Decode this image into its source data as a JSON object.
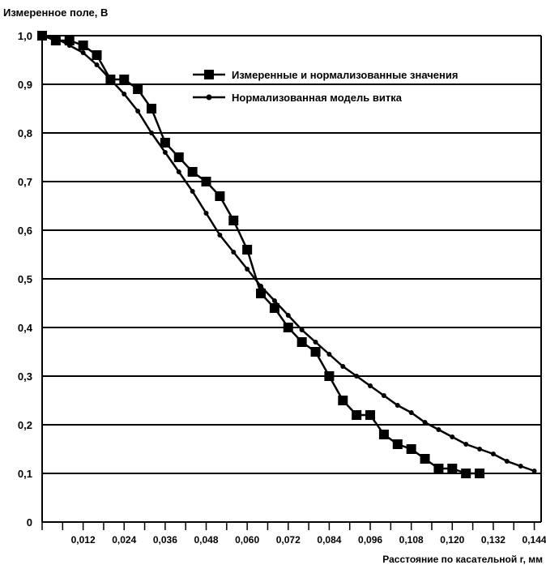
{
  "chart_data": {
    "type": "line",
    "ylabel": "Измеренное поле, В",
    "xlabel": "Расстояние по касательной r, мм",
    "y_ticks": [
      "0",
      "0,1",
      "0,2",
      "0,3",
      "0,4",
      "0,5",
      "0,6",
      "0,7",
      "0,8",
      "0,9",
      "1,0"
    ],
    "x_ticks": [
      "0,012",
      "0,024",
      "0,036",
      "0,048",
      "0,060",
      "0,072",
      "0,084",
      "0,096",
      "0,108",
      "0,120",
      "0,132",
      "0,144"
    ],
    "ylim": [
      0,
      1.0
    ],
    "xlim": [
      0,
      0.146
    ],
    "grid": "horizontal",
    "legend_position": "top-right",
    "series": [
      {
        "name": "Измеренные и нормализованные значения",
        "marker": "square",
        "x": [
          0.0,
          0.004,
          0.008,
          0.012,
          0.016,
          0.02,
          0.024,
          0.028,
          0.032,
          0.036,
          0.04,
          0.044,
          0.048,
          0.052,
          0.056,
          0.06,
          0.064,
          0.068,
          0.072,
          0.076,
          0.08,
          0.084,
          0.088,
          0.092,
          0.096,
          0.1,
          0.104,
          0.108,
          0.112,
          0.116,
          0.12,
          0.124,
          0.128
        ],
        "y": [
          1.0,
          0.99,
          0.99,
          0.98,
          0.96,
          0.91,
          0.91,
          0.89,
          0.85,
          0.78,
          0.75,
          0.72,
          0.7,
          0.67,
          0.62,
          0.56,
          0.47,
          0.44,
          0.4,
          0.37,
          0.35,
          0.3,
          0.25,
          0.22,
          0.22,
          0.18,
          0.16,
          0.15,
          0.13,
          0.11,
          0.11,
          0.1,
          0.1
        ]
      },
      {
        "name": "Нормализованная модель витка",
        "marker": "dot",
        "x": [
          0.0,
          0.004,
          0.008,
          0.012,
          0.016,
          0.02,
          0.024,
          0.028,
          0.032,
          0.036,
          0.04,
          0.044,
          0.048,
          0.052,
          0.056,
          0.06,
          0.064,
          0.068,
          0.072,
          0.076,
          0.08,
          0.084,
          0.088,
          0.092,
          0.096,
          0.1,
          0.104,
          0.108,
          0.112,
          0.116,
          0.12,
          0.124,
          0.128,
          0.132,
          0.136,
          0.14,
          0.144
        ],
        "y": [
          1.0,
          0.995,
          0.98,
          0.965,
          0.94,
          0.91,
          0.88,
          0.845,
          0.8,
          0.76,
          0.72,
          0.68,
          0.635,
          0.59,
          0.555,
          0.52,
          0.485,
          0.455,
          0.425,
          0.395,
          0.37,
          0.345,
          0.32,
          0.3,
          0.28,
          0.26,
          0.24,
          0.225,
          0.205,
          0.19,
          0.175,
          0.16,
          0.15,
          0.14,
          0.125,
          0.115,
          0.105
        ]
      }
    ]
  }
}
